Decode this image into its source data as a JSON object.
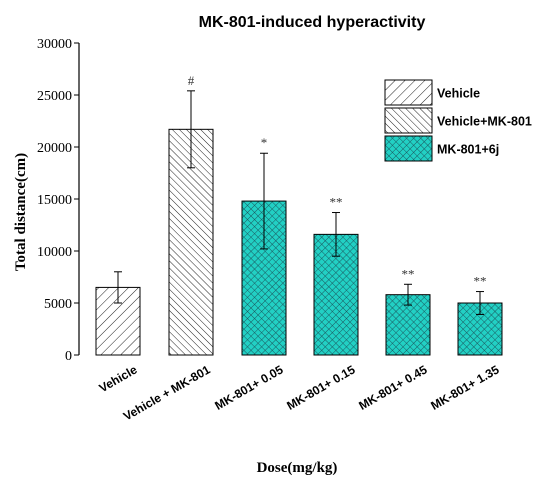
{
  "chart_data": {
    "type": "bar",
    "title": "MK-801-induced hyperactivity",
    "xlabel": "Dose(mg/kg)",
    "ylabel": "Total distance(cm)",
    "ylim": [
      0,
      30000
    ],
    "yticks": [
      0,
      5000,
      10000,
      15000,
      20000,
      25000,
      30000
    ],
    "categories": [
      "Vehicle",
      "Vehicle + MK-801",
      "MK-801+ 0.05",
      "MK-801+ 0.15",
      "MK-801+ 0.45",
      "MK-801+ 1.35"
    ],
    "values": [
      6500,
      21700,
      14800,
      11600,
      5800,
      5000
    ],
    "errors": [
      1500,
      3700,
      4600,
      2100,
      1000,
      1100
    ],
    "significance": [
      "",
      "#",
      "*",
      "**",
      "**",
      "**"
    ],
    "groups": [
      "Vehicle",
      "Vehicle+MK-801",
      "MK-801+6j",
      "MK-801+6j",
      "MK-801+6j",
      "MK-801+6j"
    ],
    "legend": {
      "position": "top-right",
      "entries": [
        {
          "label": "Vehicle",
          "pattern": "hatch-right",
          "color": "#ffffff"
        },
        {
          "label": "Vehicle+MK-801",
          "pattern": "hatch-left",
          "color": "#ffffff"
        },
        {
          "label": "MK-801+6j",
          "pattern": "crosshatch",
          "color": "#22d0c4"
        }
      ]
    },
    "grid": false
  }
}
